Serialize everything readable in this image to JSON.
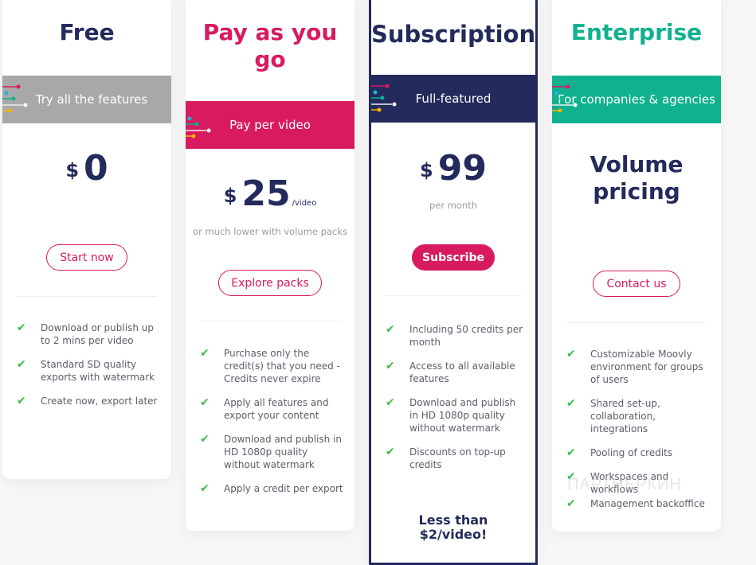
{
  "colors": {
    "navy": "#232a5c",
    "pink": "#d81b60",
    "teal": "#10b18f",
    "grey": "#a8a8a8",
    "check": "#3dbb4a"
  },
  "plans": [
    {
      "title": "Free",
      "band": "Try all the features",
      "currency": "$",
      "amount": "0",
      "unit": "",
      "subtitle": "",
      "button": "Start now",
      "features": [
        "Download or publish up to 2 mins per video",
        "Standard SD quality exports with watermark",
        "Create now, export later"
      ]
    },
    {
      "title": "Pay as you go",
      "band": "Pay per video",
      "currency": "$",
      "amount": "25",
      "unit": "/video",
      "subtitle": "or much lower with volume packs",
      "button": "Explore packs",
      "features": [
        "Purchase only the credit(s) that you need - Credits never expire",
        "Apply all features and export your content",
        "Download and publish in HD 1080p quality without watermark",
        "Apply a credit per export"
      ]
    },
    {
      "title": "Subscription",
      "band": "Full-featured",
      "currency": "$",
      "amount": "99",
      "unit": "",
      "subtitle": "per month",
      "button": "Subscribe",
      "features": [
        "Including 50 credits per month",
        "Access to all available features",
        "Download and publish in HD 1080p quality without watermark",
        "Discounts on top-up credits"
      ],
      "footer": "Less than $2/video!"
    },
    {
      "title": "Enterprise",
      "band": "For companies & agencies",
      "pricing": "Volume pricing",
      "button": "Contact us",
      "features": [
        "Customizable Moovly environment for groups of users",
        "Shared set-up, collaboration, integrations",
        "Pooling of credits",
        "Workspaces and workflows",
        "Management backoffice"
      ]
    }
  ],
  "watermark": "ПАРТНЕРКИН"
}
